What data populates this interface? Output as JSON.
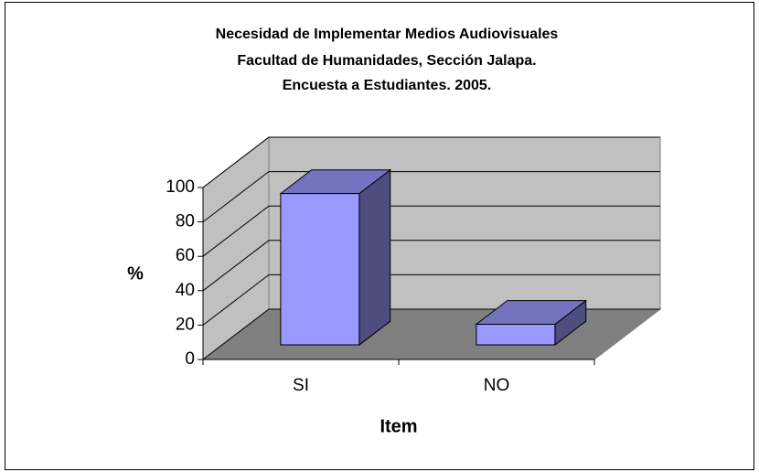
{
  "chart_data": {
    "type": "bar3d",
    "title": [
      "Necesidad de Implementar Medios Audiovisuales",
      "Facultad de Humanidades, Sección Jalapa.",
      "Encuesta a Estudiantes.  2005."
    ],
    "categories": [
      "SI",
      "NO"
    ],
    "values": [
      88,
      12
    ],
    "color": "#9999ff",
    "ylim": [
      0,
      100
    ],
    "yticks": [
      0,
      20,
      40,
      60,
      80,
      100
    ],
    "grid": true,
    "ylabel": "%",
    "xlabel": "Item"
  }
}
